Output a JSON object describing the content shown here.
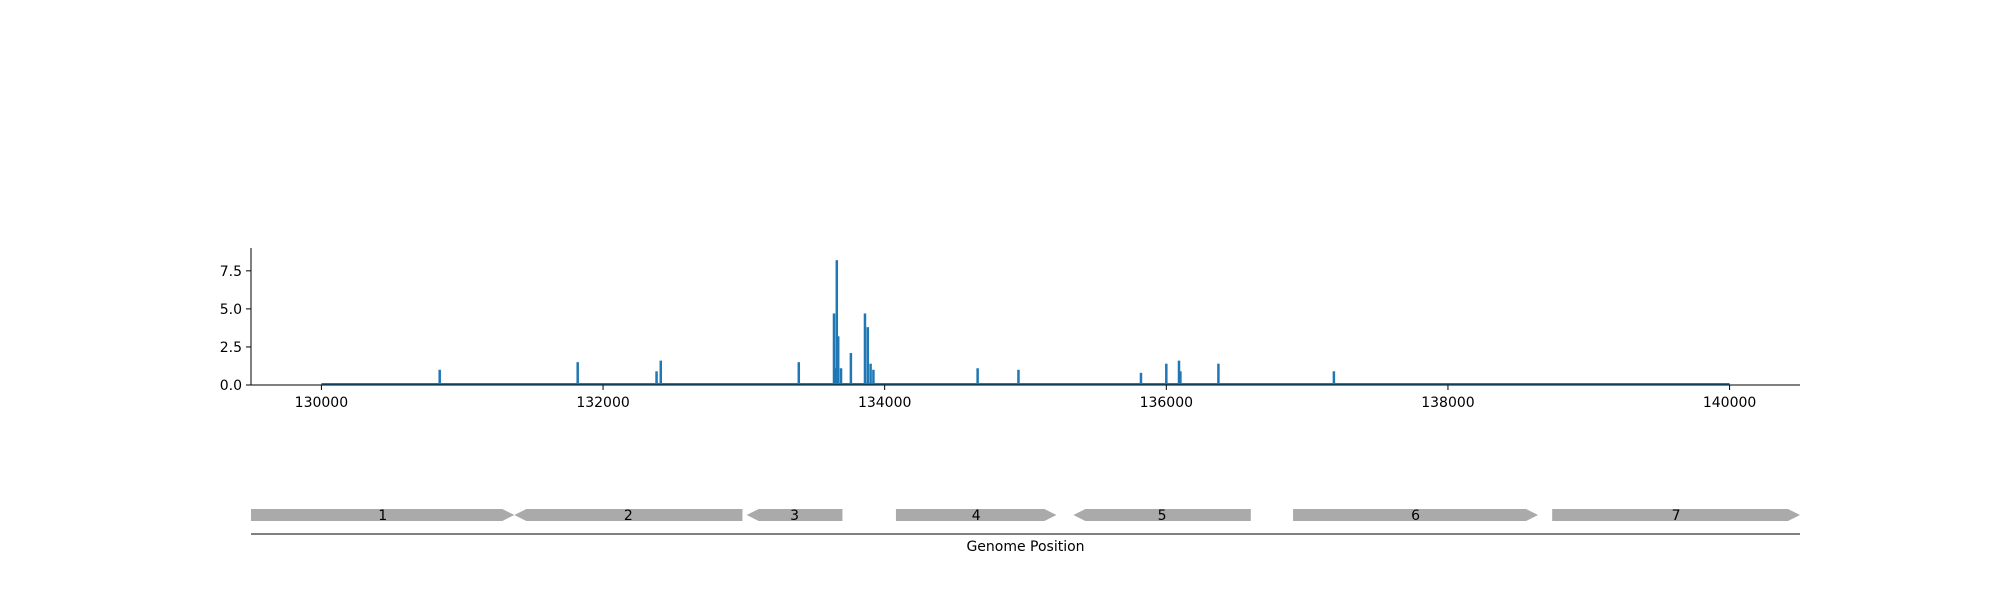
{
  "chart_data": [
    {
      "type": "bar",
      "title": "",
      "xlabel": "",
      "ylabel": "",
      "xlim": [
        129500,
        140500
      ],
      "ylim": [
        0,
        9
      ],
      "grid": false,
      "x_ticks": [
        130000,
        132000,
        134000,
        136000,
        138000,
        140000
      ],
      "x_tick_labels": [
        "130000",
        "132000",
        "134000",
        "136000",
        "138000",
        "140000"
      ],
      "y_ticks": [
        0,
        2.5,
        5,
        7.5
      ],
      "y_tick_labels": [
        "0.0",
        "2.5",
        "5.0",
        "7.5"
      ],
      "baseline": [
        130000,
        140000
      ],
      "color": "#1f77b4",
      "x": [
        130840,
        131820,
        132380,
        132410,
        133390,
        133640,
        133650,
        133660,
        133670,
        133690,
        133760,
        133860,
        133880,
        133900,
        133920,
        134660,
        134950,
        135820,
        136000,
        136090,
        136100,
        136370,
        137190
      ],
      "values": [
        1.0,
        1.5,
        0.9,
        1.6,
        1.5,
        4.7,
        1.1,
        8.2,
        3.2,
        1.1,
        2.1,
        4.7,
        3.8,
        1.4,
        1.0,
        1.1,
        1.0,
        0.8,
        1.4,
        1.6,
        0.9,
        1.4,
        0.9
      ]
    },
    {
      "type": "gene-track",
      "xlabel": "Genome Position",
      "color": "#aaaaaa",
      "genes": [
        {
          "label": "1",
          "start": 129500,
          "end": 131370,
          "strand": "+"
        },
        {
          "label": "2",
          "start": 131370,
          "end": 132990,
          "strand": "-"
        },
        {
          "label": "3",
          "start": 133020,
          "end": 133700,
          "strand": "-"
        },
        {
          "label": "4",
          "start": 134080,
          "end": 135220,
          "strand": "+"
        },
        {
          "label": "5",
          "start": 135340,
          "end": 136600,
          "strand": "-"
        },
        {
          "label": "6",
          "start": 136900,
          "end": 138640,
          "strand": "+"
        },
        {
          "label": "7",
          "start": 138740,
          "end": 140500,
          "strand": "+"
        }
      ]
    }
  ]
}
